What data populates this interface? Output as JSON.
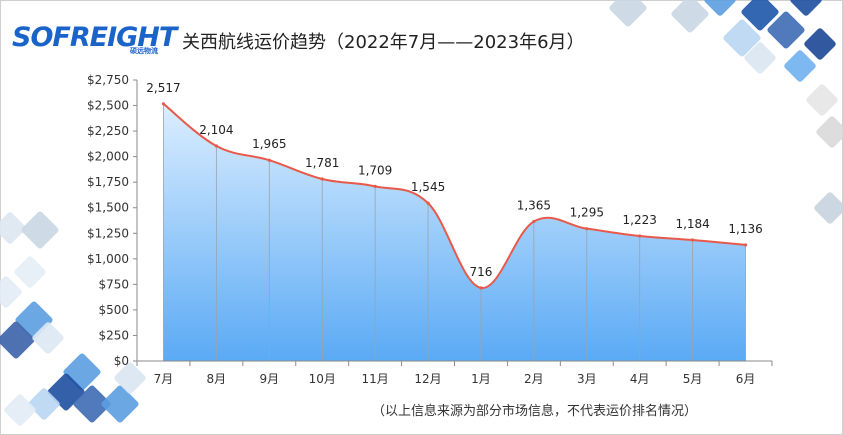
{
  "logo": {
    "text": "SOFREIGHT",
    "sub": "硕远物流"
  },
  "chart_data": {
    "type": "area",
    "title": "关西航线运价趋势（2022年7月——2023年6月）",
    "categories": [
      "7月",
      "8月",
      "9月",
      "10月",
      "11月",
      "12月",
      "1月",
      "2月",
      "3月",
      "4月",
      "5月",
      "6月"
    ],
    "values": [
      2517,
      2104,
      1965,
      1781,
      1709,
      1545,
      716,
      1365,
      1295,
      1223,
      1184,
      1136
    ],
    "data_labels": [
      "2,517",
      "2,104",
      "1,965",
      "1,781",
      "1,709",
      "1,545",
      "716",
      "1,365",
      "1,295",
      "1,223",
      "1,184",
      "1,136"
    ],
    "ylim": [
      0,
      2750
    ],
    "yticks": [
      "$0",
      "$250",
      "$500",
      "$750",
      "$1,000",
      "$1,250",
      "$1,500",
      "$1,750",
      "$2,000",
      "$2,250",
      "$2,500",
      "$2,750"
    ],
    "xlabel": "",
    "ylabel": "",
    "grid": false,
    "line_color": "#e8594a",
    "fill_top_color": "#dceeff",
    "fill_bottom_color": "#5aaaf5"
  },
  "footnote": "（以上信息来源为部分市场信息，不代表运价排名情况）"
}
